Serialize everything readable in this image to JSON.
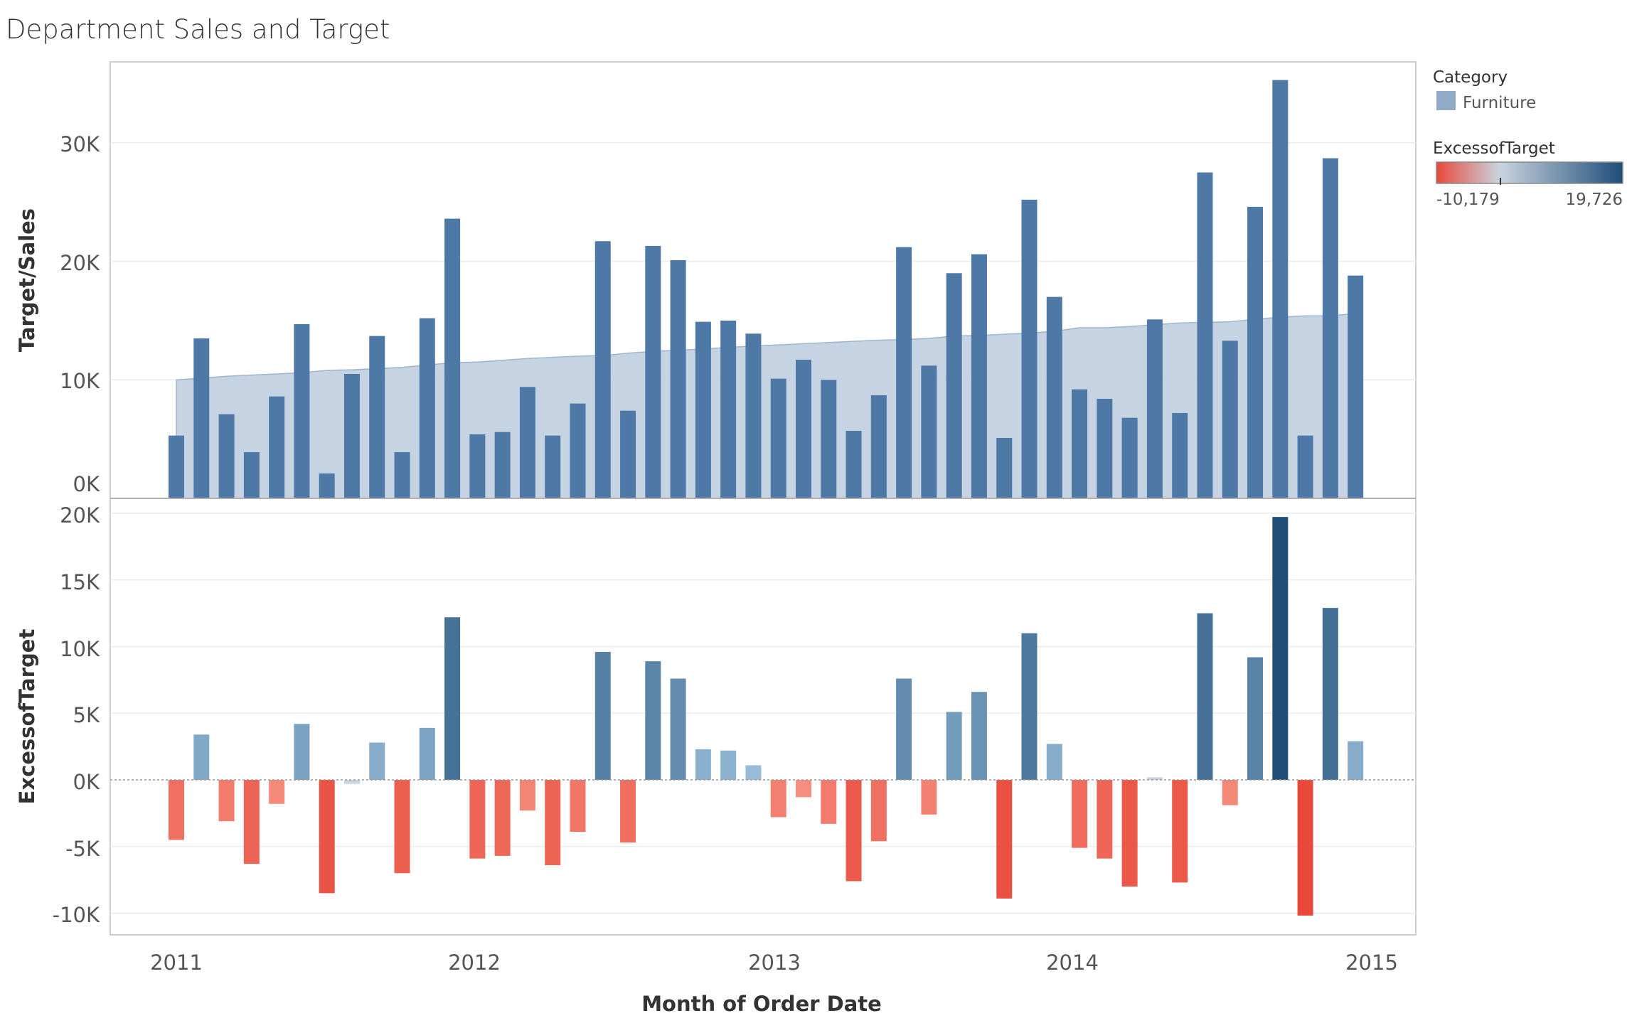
{
  "chart_data": [
    {
      "type": "bar",
      "title": "Department Sales and Target",
      "ylabel": "Target/Sales",
      "ylim": [
        0,
        36000
      ],
      "y_ticks": [
        "0K",
        "10K",
        "20K",
        "30K"
      ],
      "x": [
        "2011-01",
        "2011-02",
        "2011-03",
        "2011-04",
        "2011-05",
        "2011-06",
        "2011-07",
        "2011-08",
        "2011-09",
        "2011-10",
        "2011-11",
        "2011-12",
        "2012-01",
        "2012-02",
        "2012-03",
        "2012-04",
        "2012-05",
        "2012-06",
        "2012-07",
        "2012-08",
        "2012-09",
        "2012-10",
        "2012-11",
        "2012-12",
        "2013-01",
        "2013-02",
        "2013-03",
        "2013-04",
        "2013-05",
        "2013-06",
        "2013-07",
        "2013-08",
        "2013-09",
        "2013-10",
        "2013-11",
        "2013-12",
        "2014-01",
        "2014-02",
        "2014-03",
        "2014-04",
        "2014-05",
        "2014-06",
        "2014-07",
        "2014-08",
        "2014-09",
        "2014-10",
        "2014-11",
        "2014-12"
      ],
      "series": [
        {
          "name": "Furniture",
          "kind": "area",
          "values": [
            10000,
            10150,
            10300,
            10400,
            10500,
            10600,
            10800,
            10850,
            10950,
            11050,
            11250,
            11450,
            11500,
            11650,
            11800,
            11900,
            12000,
            12050,
            12250,
            12400,
            12500,
            12600,
            12750,
            12850,
            12950,
            13050,
            13150,
            13250,
            13350,
            13400,
            13500,
            13700,
            13750,
            13850,
            13950,
            14100,
            14400,
            14400,
            14500,
            14650,
            14800,
            14850,
            14900,
            15100,
            15300,
            15400,
            15400,
            15600
          ]
        },
        {
          "kind": "bar",
          "values": [
            5300,
            13500,
            7100,
            3900,
            8600,
            14700,
            2100,
            10500,
            13700,
            3900,
            15200,
            23600,
            5400,
            5600,
            9400,
            5300,
            8000,
            21700,
            7400,
            21300,
            20100,
            14900,
            15000,
            13900,
            10100,
            11700,
            10000,
            5700,
            8700,
            21200,
            11200,
            19000,
            20600,
            5100,
            25200,
            17000,
            9200,
            8400,
            6800,
            15100,
            7200,
            27500,
            13300,
            24600,
            35300,
            5300,
            28700,
            18800
          ]
        }
      ]
    },
    {
      "type": "bar",
      "ylabel": "ExcessofTarget",
      "xlabel": "Month of Order Date",
      "ylim": [
        -11000,
        20500
      ],
      "y_ticks": [
        "20K",
        "15K",
        "10K",
        "5K",
        "0K",
        "-5K",
        "-10K"
      ],
      "x_ticks": [
        "2011",
        "2012",
        "2013",
        "2014",
        "2015"
      ],
      "x": [
        "2011-01",
        "2011-02",
        "2011-03",
        "2011-04",
        "2011-05",
        "2011-06",
        "2011-07",
        "2011-08",
        "2011-09",
        "2011-10",
        "2011-11",
        "2011-12",
        "2012-01",
        "2012-02",
        "2012-03",
        "2012-04",
        "2012-05",
        "2012-06",
        "2012-07",
        "2012-08",
        "2012-09",
        "2012-10",
        "2012-11",
        "2012-12",
        "2013-01",
        "2013-02",
        "2013-03",
        "2013-04",
        "2013-05",
        "2013-06",
        "2013-07",
        "2013-08",
        "2013-09",
        "2013-10",
        "2013-11",
        "2013-12",
        "2014-01",
        "2014-02",
        "2014-03",
        "2014-04",
        "2014-05",
        "2014-06",
        "2014-07",
        "2014-08",
        "2014-09",
        "2014-10",
        "2014-11",
        "2014-12"
      ],
      "values": [
        -4500,
        3400,
        -3100,
        -6300,
        -1800,
        4200,
        -8500,
        -300,
        2800,
        -7000,
        3900,
        12200,
        -5900,
        -5700,
        -2300,
        -6400,
        -3900,
        9600,
        -4700,
        8900,
        7600,
        2300,
        2200,
        1100,
        -2800,
        -1300,
        -3300,
        -7600,
        -4600,
        7600,
        -2600,
        5100,
        6600,
        -8900,
        11000,
        2700,
        -5100,
        -5900,
        -8000,
        200,
        -7700,
        12500,
        -1900,
        9200,
        19726,
        -10179,
        12900,
        2900
      ],
      "color_legend": {
        "title": "ExcessofTarget",
        "min": "-10,179",
        "max": "19,726",
        "neg_color": "#e8493b",
        "mid_color": "#c9d4df",
        "pos_color": "#1f4e79"
      }
    }
  ],
  "legend": {
    "category_title": "Category",
    "category_item": "Furniture",
    "category_color": "#8fabc8"
  },
  "colors": {
    "bar": "#4e79a7",
    "area_fill": "#c3d1e2",
    "area_line": "#9fb5cf"
  }
}
